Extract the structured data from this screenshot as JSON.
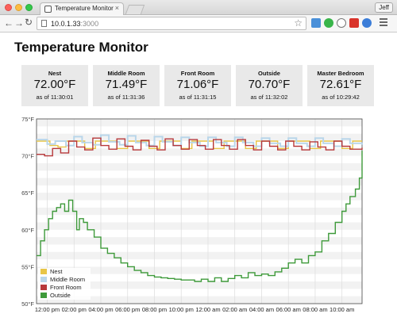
{
  "browser": {
    "tab_title": "Temperature Monitor",
    "tab_close": "×",
    "url_host": "10.0.1.33",
    "url_port": ":3000",
    "user": "Jeff"
  },
  "page": {
    "title": "Temperature Monitor"
  },
  "sensors": [
    {
      "name": "Nest",
      "temp": "72.00°F",
      "time": "as of 11:30:01"
    },
    {
      "name": "Middle Room",
      "temp": "71.49°F",
      "time": "as of 11:31:36"
    },
    {
      "name": "Front Room",
      "temp": "71.06°F",
      "time": "as of 11:31:15"
    },
    {
      "name": "Outside",
      "temp": "70.70°F",
      "time": "as of 11:32:02"
    },
    {
      "name": "Master Bedroom",
      "temp": "72.61°F",
      "time": "as of 10:29:42"
    }
  ],
  "chart_data": {
    "type": "line",
    "ylim": [
      50,
      75
    ],
    "yticks": [
      "75°F",
      "70°F",
      "65°F",
      "60°F",
      "55°F",
      "50°F"
    ],
    "xticks": [
      "12:00 pm",
      "02:00 pm",
      "04:00 pm",
      "06:00 pm",
      "08:00 pm",
      "10:00 pm",
      "12:00 am",
      "02:00 am",
      "04:00 am",
      "06:00 am",
      "08:00 am",
      "10:00 am"
    ],
    "x_hours_start": 11.2,
    "x_hours_end": 35.5,
    "legend_position": "bottom-left",
    "series": [
      {
        "name": "Nest",
        "color": "#e8c547",
        "x": [
          11.2,
          11.6,
          12.2,
          12.8,
          13.4,
          14.2,
          14.8,
          15.6,
          16.4,
          17.2,
          18.0,
          18.8,
          19.6,
          20.4,
          21.2,
          22.0,
          22.8,
          23.6,
          24.4,
          25.2,
          26.0,
          26.8,
          27.6,
          28.4,
          29.2,
          30.0,
          30.8,
          31.6,
          32.4,
          33.2,
          34.0,
          34.8,
          35.5
        ],
        "y": [
          72.0,
          72.0,
          71.4,
          71.2,
          72.0,
          72.0,
          71.0,
          72.0,
          72.0,
          71.0,
          72.0,
          72.0,
          71.0,
          72.0,
          72.0,
          71.0,
          72.0,
          72.0,
          71.0,
          72.0,
          72.0,
          71.0,
          72.0,
          72.0,
          71.0,
          72.0,
          72.0,
          71.0,
          72.0,
          72.0,
          71.0,
          72.0,
          72.0
        ]
      },
      {
        "name": "Middle Room",
        "color": "#b9d6ea",
        "x": [
          11.2,
          12.0,
          12.6,
          13.4,
          14.0,
          14.6,
          15.4,
          16.0,
          16.6,
          17.4,
          18.0,
          18.6,
          19.4,
          20.0,
          20.6,
          21.4,
          22.0,
          22.6,
          23.4,
          24.0,
          24.6,
          25.4,
          26.0,
          26.6,
          27.4,
          28.0,
          28.6,
          29.4,
          30.0,
          30.6,
          31.4,
          32.0,
          32.6,
          33.4,
          34.0,
          34.6,
          35.5
        ],
        "y": [
          72.2,
          71.6,
          72.0,
          71.4,
          72.6,
          71.8,
          71.5,
          72.8,
          71.9,
          71.5,
          72.7,
          71.8,
          71.4,
          72.6,
          71.9,
          71.4,
          72.5,
          71.8,
          71.3,
          72.5,
          71.8,
          71.3,
          72.5,
          71.8,
          71.3,
          72.4,
          71.7,
          71.3,
          72.4,
          71.7,
          71.3,
          72.4,
          71.7,
          71.3,
          72.3,
          71.7,
          71.5
        ]
      },
      {
        "name": "Front Room",
        "color": "#b7383a",
        "x": [
          11.2,
          11.8,
          12.4,
          13.0,
          13.6,
          14.2,
          14.8,
          15.4,
          16.0,
          16.6,
          17.2,
          17.8,
          18.4,
          19.0,
          19.6,
          20.2,
          20.8,
          21.4,
          22.0,
          22.6,
          23.2,
          23.8,
          24.4,
          25.0,
          25.6,
          26.2,
          26.8,
          27.4,
          28.0,
          28.6,
          29.2,
          29.8,
          30.4,
          31.0,
          31.6,
          32.2,
          32.8,
          33.4,
          34.0,
          34.6,
          35.5
        ],
        "y": [
          70.2,
          70.0,
          71.0,
          70.4,
          72.0,
          71.2,
          70.8,
          72.4,
          71.4,
          70.9,
          72.3,
          71.3,
          70.8,
          72.1,
          71.3,
          70.8,
          72.3,
          71.4,
          70.9,
          72.2,
          71.4,
          70.9,
          72.2,
          71.4,
          70.9,
          72.2,
          71.4,
          70.8,
          72.0,
          71.3,
          70.8,
          72.0,
          71.3,
          70.8,
          71.9,
          71.2,
          70.8,
          72.0,
          71.3,
          70.9,
          71.1
        ]
      },
      {
        "name": "Outside",
        "color": "#3e9a3a",
        "x": [
          11.2,
          11.5,
          11.8,
          12.1,
          12.4,
          12.7,
          13.0,
          13.3,
          13.6,
          13.9,
          14.2,
          14.4,
          14.7,
          15.0,
          15.5,
          16.0,
          16.5,
          17.0,
          17.5,
          18.0,
          18.5,
          19.0,
          19.5,
          20.0,
          20.5,
          21.0,
          21.5,
          22.0,
          22.5,
          23.0,
          23.5,
          24.0,
          24.5,
          25.0,
          25.5,
          26.0,
          26.5,
          27.0,
          27.5,
          28.0,
          28.5,
          29.0,
          29.5,
          30.0,
          30.5,
          31.0,
          31.5,
          32.0,
          32.5,
          33.0,
          33.5,
          34.0,
          34.3,
          34.6,
          35.0,
          35.3,
          35.5
        ],
        "y": [
          56.5,
          58.5,
          60.0,
          61.5,
          62.5,
          63.0,
          63.5,
          62.5,
          64.0,
          62.5,
          60.0,
          61.5,
          61.0,
          60.0,
          59.0,
          57.5,
          56.8,
          56.2,
          55.5,
          55.0,
          54.5,
          54.2,
          53.8,
          53.6,
          53.5,
          53.4,
          53.3,
          53.2,
          53.2,
          53.0,
          53.3,
          53.0,
          53.5,
          53.0,
          53.4,
          53.8,
          53.5,
          54.2,
          53.8,
          54.0,
          53.8,
          54.3,
          54.8,
          55.5,
          56.0,
          55.5,
          56.5,
          57.0,
          58.5,
          59.5,
          61.0,
          62.5,
          63.5,
          64.5,
          65.5,
          67.0,
          70.7
        ]
      }
    ]
  }
}
